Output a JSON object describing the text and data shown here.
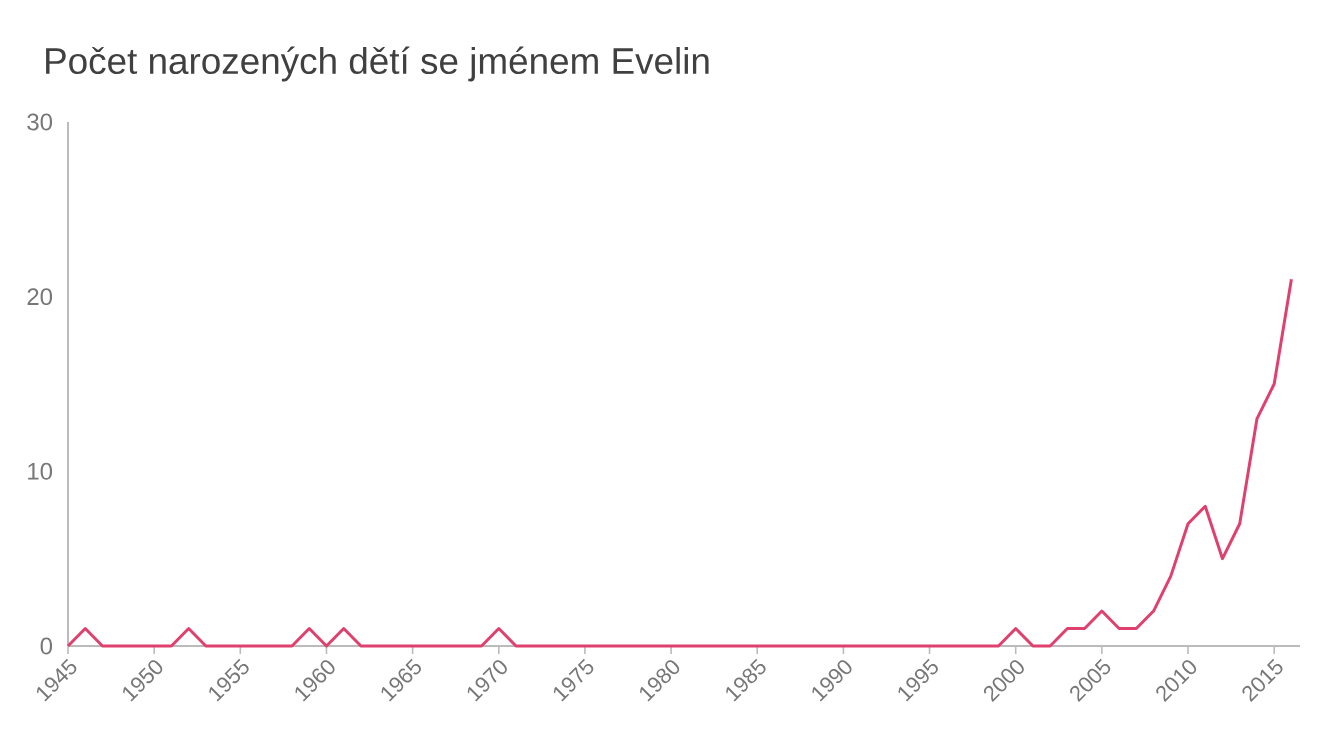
{
  "chart_data": {
    "type": "line",
    "title": "Počet narozených dětí se jménem Evelin",
    "x": [
      1945,
      1946,
      1947,
      1948,
      1949,
      1950,
      1951,
      1952,
      1953,
      1954,
      1955,
      1956,
      1957,
      1958,
      1959,
      1960,
      1961,
      1962,
      1963,
      1964,
      1965,
      1966,
      1967,
      1968,
      1969,
      1970,
      1971,
      1972,
      1973,
      1974,
      1975,
      1976,
      1977,
      1978,
      1979,
      1980,
      1981,
      1982,
      1983,
      1984,
      1985,
      1986,
      1987,
      1988,
      1989,
      1990,
      1991,
      1992,
      1993,
      1994,
      1995,
      1996,
      1997,
      1998,
      1999,
      2000,
      2001,
      2002,
      2003,
      2004,
      2005,
      2006,
      2007,
      2008,
      2009,
      2010,
      2011,
      2012,
      2013,
      2014,
      2015,
      2016
    ],
    "values": [
      0,
      1,
      0,
      0,
      0,
      0,
      0,
      1,
      0,
      0,
      0,
      0,
      0,
      0,
      1,
      0,
      1,
      0,
      0,
      0,
      0,
      0,
      0,
      0,
      0,
      1,
      0,
      0,
      0,
      0,
      0,
      0,
      0,
      0,
      0,
      0,
      0,
      0,
      0,
      0,
      0,
      0,
      0,
      0,
      0,
      0,
      0,
      0,
      0,
      0,
      0,
      0,
      0,
      0,
      0,
      1,
      0,
      0,
      1,
      1,
      2,
      1,
      1,
      2,
      4,
      7,
      8,
      5,
      7,
      13,
      15,
      21
    ],
    "color": "#e0406e",
    "xlim": [
      1945,
      2016.5
    ],
    "ylim": [
      0,
      30
    ],
    "xticks": [
      1945,
      1950,
      1955,
      1960,
      1965,
      1970,
      1975,
      1980,
      1985,
      1990,
      1995,
      2000,
      2005,
      2010,
      2015
    ],
    "yticks": [
      0,
      10,
      20,
      30
    ],
    "marker": "none",
    "line_style": "solid"
  }
}
